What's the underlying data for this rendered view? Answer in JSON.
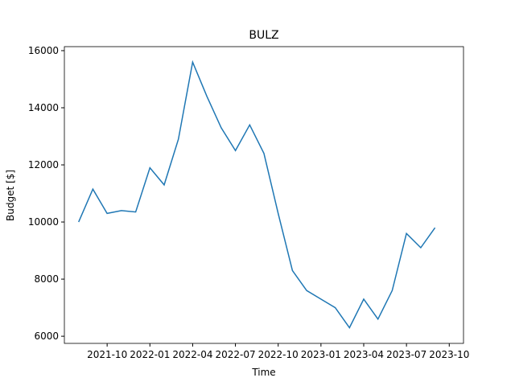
{
  "chart_data": {
    "type": "line",
    "title": "BULZ",
    "xlabel": "Time",
    "ylabel": "Budget [$]",
    "x": [
      "2021-08",
      "2021-09",
      "2021-10",
      "2021-11",
      "2021-12",
      "2022-01",
      "2022-02",
      "2022-03",
      "2022-04",
      "2022-05",
      "2022-06",
      "2022-07",
      "2022-08",
      "2022-09",
      "2022-10",
      "2022-11",
      "2022-12",
      "2023-01",
      "2023-02",
      "2023-03",
      "2023-04",
      "2023-05",
      "2023-06",
      "2023-07",
      "2023-08",
      "2023-09"
    ],
    "series": [
      {
        "name": "BULZ",
        "color": "#1f77b4",
        "values": [
          10000,
          11150,
          10300,
          10400,
          10350,
          11900,
          11300,
          12900,
          15600,
          14400,
          13300,
          12500,
          13400,
          12400,
          10300,
          8300,
          7600,
          7300,
          7000,
          6300,
          7300,
          6600,
          7600,
          9600,
          9100,
          9800
        ]
      }
    ],
    "xlim": [
      "2021-07",
      "2023-11"
    ],
    "xticks": [
      "2021-10",
      "2022-01",
      "2022-04",
      "2022-07",
      "2022-10",
      "2023-01",
      "2023-04",
      "2023-07",
      "2023-10"
    ],
    "ylim": [
      5750,
      16140
    ],
    "yticks": [
      6000,
      8000,
      10000,
      12000,
      14000,
      16000
    ]
  }
}
